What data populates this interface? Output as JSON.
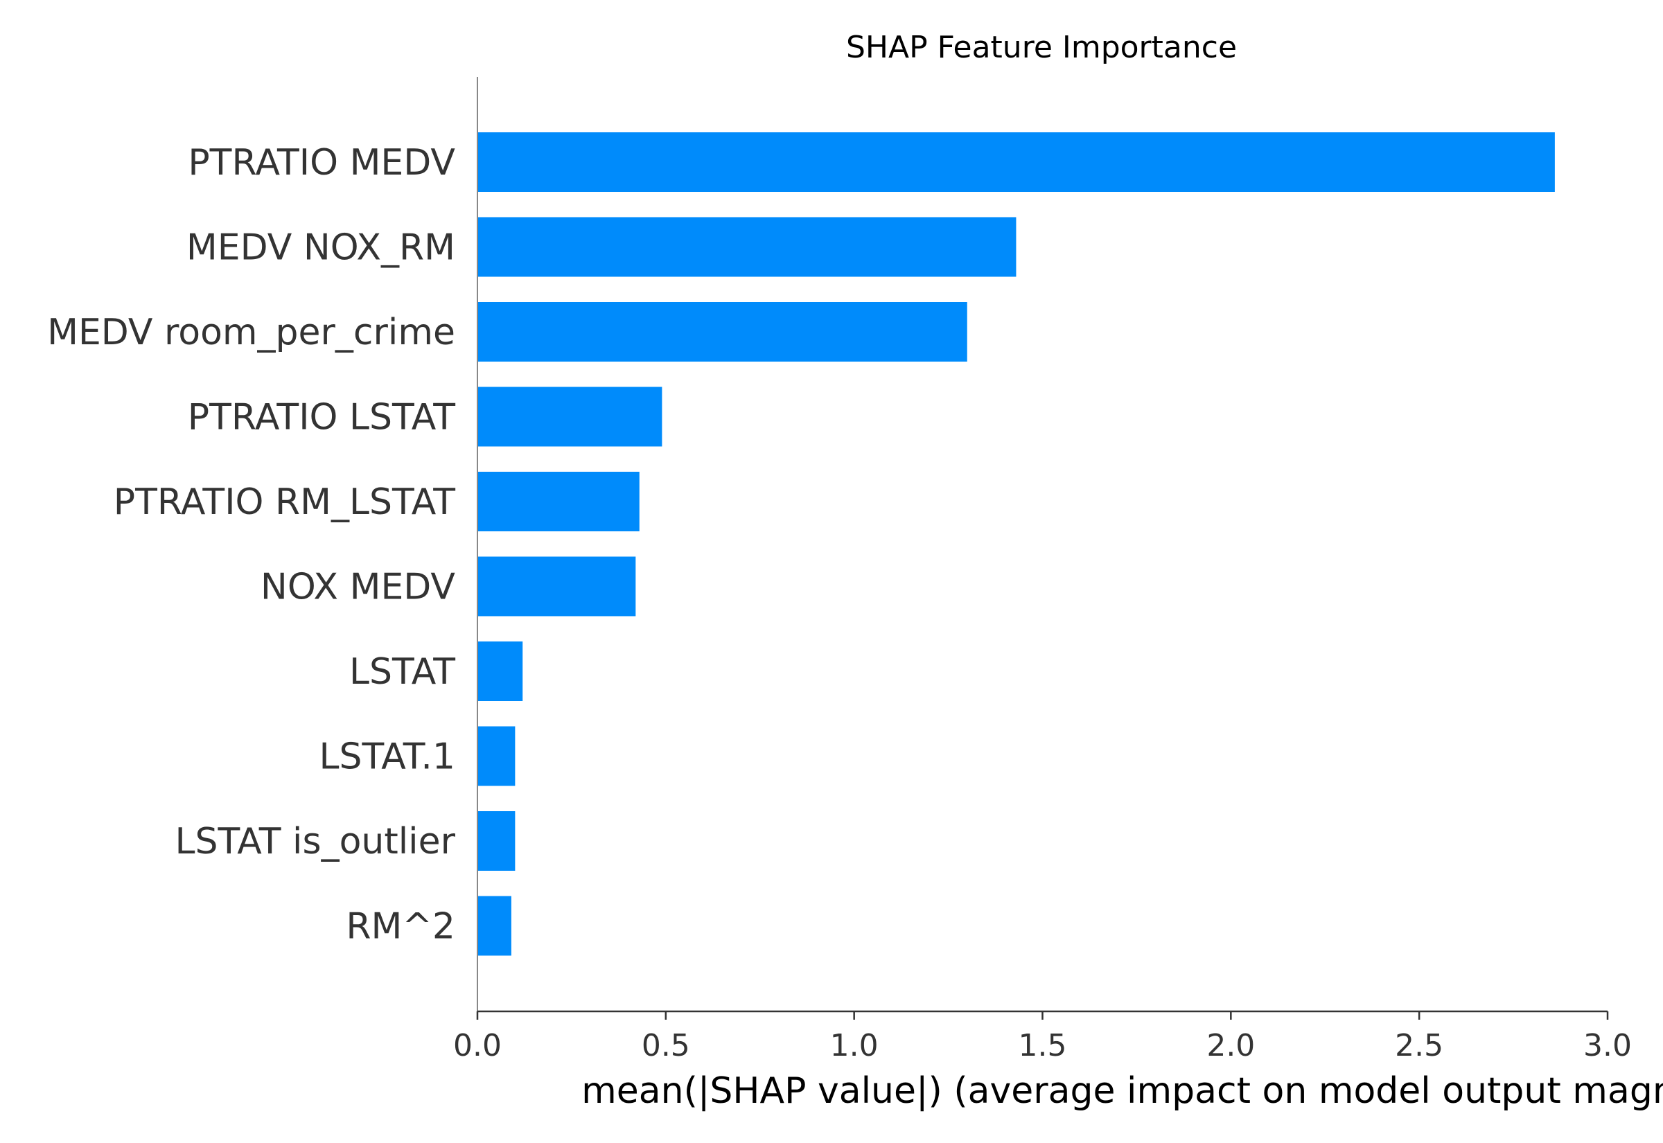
{
  "chart_data": {
    "type": "bar",
    "orientation": "horizontal",
    "title": "SHAP Feature Importance",
    "xlabel": "mean(|SHAP value|) (average impact on model output magnitude)",
    "ylabel": "",
    "xlim": [
      0,
      3.0
    ],
    "xticks": [
      "0.0",
      "0.5",
      "1.0",
      "1.5",
      "2.0",
      "2.5",
      "3.0"
    ],
    "categories": [
      "PTRATIO MEDV",
      "MEDV NOX_RM",
      "MEDV room_per_crime",
      "PTRATIO LSTAT",
      "PTRATIO RM_LSTAT",
      "NOX MEDV",
      "LSTAT",
      "LSTAT.1",
      "LSTAT is_outlier",
      "RM^2"
    ],
    "values": [
      2.86,
      1.43,
      1.3,
      0.49,
      0.43,
      0.42,
      0.12,
      0.1,
      0.1,
      0.09
    ],
    "bar_color": "#008bfb",
    "grid": false,
    "legend": "none"
  }
}
